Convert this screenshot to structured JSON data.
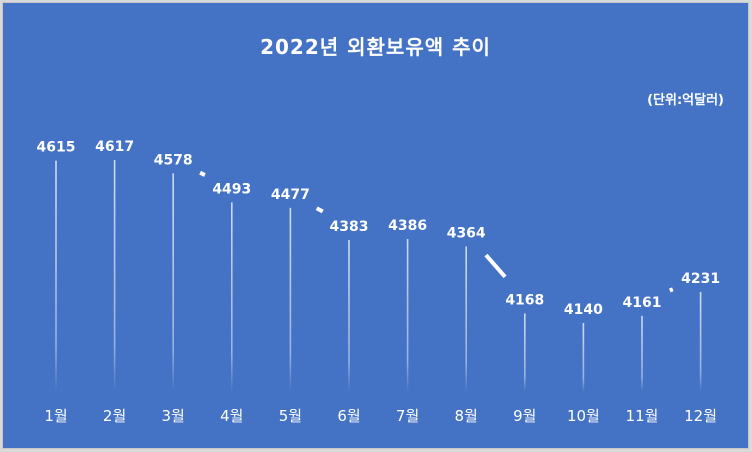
{
  "chart": {
    "title": "2022년 외환보유액 추이",
    "unit_label": "(단위:억달러)"
  },
  "chart_data": {
    "type": "line",
    "title": "2022년 외환보유액 추이",
    "unit": "(단위:억달러)",
    "categories": [
      "1월",
      "2월",
      "3월",
      "4월",
      "5월",
      "6월",
      "7월",
      "8월",
      "9월",
      "10월",
      "11월",
      "12월"
    ],
    "series": [
      {
        "name": "외환보유액",
        "values": [
          4615,
          4617,
          4578,
          4493,
          4477,
          4383,
          4386,
          4364,
          4168,
          4140,
          4161,
          4231
        ]
      }
    ],
    "xlabel": "",
    "ylabel": "",
    "grid": false,
    "drop_lines": true,
    "data_labels": true,
    "colors": {
      "background": "#4472c4",
      "line": "#ffffff",
      "text": "#ffffff"
    }
  }
}
